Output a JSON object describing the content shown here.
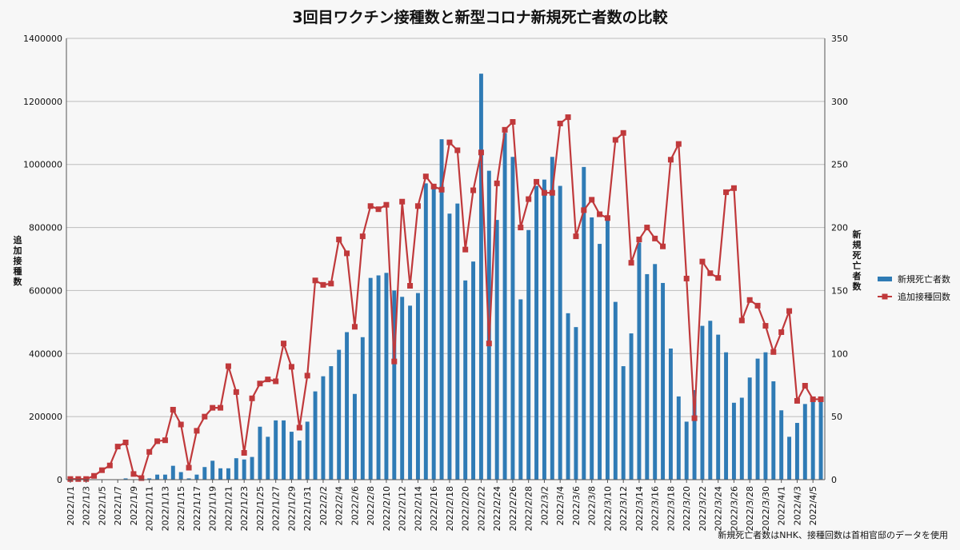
{
  "chart_data": {
    "type": "bar+line",
    "title": "3回目ワクチン接種数と新型コロナ新規死亡者数の比較",
    "ylabel_left": "追加接種数",
    "ylabel_right": "新規死亡者数",
    "ylim_left": [
      0,
      1400000
    ],
    "ylim_right": [
      0,
      350
    ],
    "yticks_left": [
      "0",
      "200000",
      "400000",
      "600000",
      "800000",
      "1000000",
      "1200000",
      "1400000"
    ],
    "yticks_right": [
      "0",
      "50",
      "100",
      "150",
      "200",
      "250",
      "300",
      "350"
    ],
    "grid": true,
    "legend_position": "right",
    "note": "新規死亡者数はNHK、接種回数は首相官邸のデータを使用",
    "colors": {
      "bar": "#2f7bb5",
      "line": "#c0393b",
      "grid": "#bdbdbd",
      "axis": "#555555"
    },
    "categories": [
      "2022/1/1",
      "2022/1/2",
      "2022/1/3",
      "2022/1/4",
      "2022/1/5",
      "2022/1/6",
      "2022/1/7",
      "2022/1/8",
      "2022/1/9",
      "2022/1/10",
      "2022/1/11",
      "2022/1/12",
      "2022/1/13",
      "2022/1/14",
      "2022/1/15",
      "2022/1/16",
      "2022/1/17",
      "2022/1/18",
      "2022/1/19",
      "2022/1/20",
      "2022/1/21",
      "2022/1/22",
      "2022/1/23",
      "2022/1/24",
      "2022/1/25",
      "2022/1/26",
      "2022/1/27",
      "2022/1/28",
      "2022/1/29",
      "2022/1/30",
      "2022/1/31",
      "2022/2/1",
      "2022/2/2",
      "2022/2/3",
      "2022/2/4",
      "2022/2/5",
      "2022/2/6",
      "2022/2/7",
      "2022/2/8",
      "2022/2/9",
      "2022/2/10",
      "2022/2/11",
      "2022/2/12",
      "2022/2/13",
      "2022/2/14",
      "2022/2/15",
      "2022/2/16",
      "2022/2/17",
      "2022/2/18",
      "2022/2/19",
      "2022/2/20",
      "2022/2/21",
      "2022/2/22",
      "2022/2/23",
      "2022/2/24",
      "2022/2/25",
      "2022/2/26",
      "2022/2/27",
      "2022/2/28",
      "2022/3/1",
      "2022/3/2",
      "2022/3/3",
      "2022/3/4",
      "2022/3/5",
      "2022/3/6",
      "2022/3/7",
      "2022/3/8",
      "2022/3/9",
      "2022/3/10",
      "2022/3/11",
      "2022/3/12",
      "2022/3/13",
      "2022/3/14",
      "2022/3/15",
      "2022/3/16",
      "2022/3/17",
      "2022/3/18",
      "2022/3/19",
      "2022/3/20",
      "2022/3/21",
      "2022/3/22",
      "2022/3/23",
      "2022/3/24",
      "2022/3/25",
      "2022/3/26",
      "2022/3/27",
      "2022/3/28",
      "2022/3/29",
      "2022/3/30",
      "2022/3/31",
      "2022/4/1",
      "2022/4/2",
      "2022/4/3",
      "2022/4/4",
      "2022/4/5",
      "2022/4/6"
    ],
    "xtick_labels": [
      "2022/1/1",
      "2022/1/3",
      "2022/1/5",
      "2022/1/7",
      "2022/1/9",
      "2022/1/11",
      "2022/1/13",
      "2022/1/15",
      "2022/1/17",
      "2022/1/19",
      "2022/1/21",
      "2022/1/23",
      "2022/1/25",
      "2022/1/27",
      "2022/1/29",
      "2022/1/31",
      "2022/2/2",
      "2022/2/4",
      "2022/2/6",
      "2022/2/8",
      "2022/2/10",
      "2022/2/12",
      "2022/2/14",
      "2022/2/16",
      "2022/2/18",
      "2022/2/20",
      "2022/2/22",
      "2022/2/24",
      "2022/2/26",
      "2022/2/28",
      "2022/3/2",
      "2022/3/4",
      "2022/3/6",
      "2022/3/8",
      "2022/3/10",
      "2022/3/12",
      "2022/3/14",
      "2022/3/16",
      "2022/3/18",
      "2022/3/20",
      "2022/3/22",
      "2022/3/24",
      "2022/3/26",
      "2022/3/28",
      "2022/3/30",
      "2022/4/1",
      "2022/4/3",
      "2022/4/5"
    ],
    "series": [
      {
        "name": "新規死亡者数",
        "type": "bar",
        "axis": "right",
        "values": [
          0,
          0,
          0,
          0,
          0,
          0,
          0,
          1,
          0,
          0,
          1,
          4,
          4,
          11,
          6,
          1,
          4,
          10,
          15,
          9,
          9,
          17,
          16,
          18,
          42,
          34,
          47,
          47,
          38,
          31,
          46,
          70,
          82,
          90,
          103,
          117,
          68,
          113,
          160,
          162,
          164,
          150,
          145,
          138,
          148,
          235,
          233,
          270,
          211,
          219,
          158,
          173,
          322,
          245,
          206,
          275,
          256,
          143,
          198,
          233,
          238,
          256,
          233,
          132,
          121,
          248,
          208,
          187,
          209,
          141,
          90,
          116,
          188,
          163,
          171,
          156,
          104,
          66,
          46,
          71,
          122,
          126,
          115,
          101,
          61,
          65,
          81,
          96,
          101,
          78,
          55,
          34,
          45,
          60,
          65,
          66
        ]
      },
      {
        "name": "追加接種回数",
        "type": "line",
        "axis": "left",
        "values": [
          2000,
          2000,
          2000,
          12000,
          30000,
          45000,
          105000,
          118000,
          18000,
          5000,
          88000,
          122000,
          125000,
          222000,
          175000,
          38000,
          155000,
          200000,
          228000,
          228000,
          360000,
          278000,
          85000,
          258000,
          305000,
          318000,
          312000,
          432000,
          358000,
          165000,
          330000,
          632000,
          618000,
          622000,
          762000,
          718000,
          485000,
          772000,
          868000,
          858000,
          872000,
          375000,
          882000,
          615000,
          868000,
          962000,
          930000,
          920000,
          1070000,
          1045000,
          730000,
          918000,
          1038000,
          432000,
          940000,
          1110000,
          1135000,
          800000,
          890000,
          945000,
          910000,
          910000,
          1130000,
          1150000,
          772000,
          855000,
          888000,
          842000,
          830000,
          1078000,
          1100000,
          688000,
          762000,
          800000,
          765000,
          740000,
          1015000,
          1065000,
          638000,
          195000,
          692000,
          655000,
          640000,
          912000,
          925000,
          505000,
          570000,
          552000,
          488000,
          405000,
          468000,
          535000,
          250000,
          298000,
          255000,
          255000
        ]
      }
    ]
  }
}
